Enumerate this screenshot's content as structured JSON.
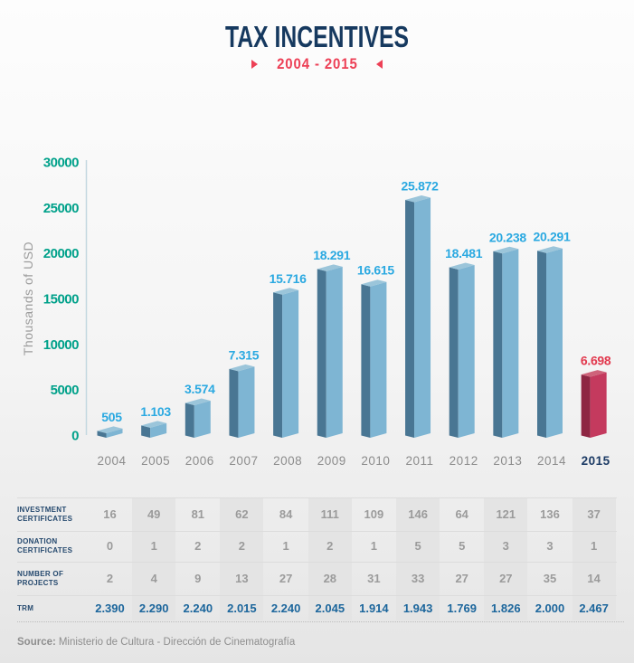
{
  "header": {
    "title": "TAX INCENTIVES",
    "subtitle": "2004 - 2015"
  },
  "chart_data": {
    "type": "bar",
    "title": "TAX INCENTIVES",
    "subtitle": "2004 - 2015",
    "ylabel": "Thousands of USD",
    "ylim": [
      0,
      30000
    ],
    "yticks": [
      0,
      5000,
      10000,
      15000,
      20000,
      25000,
      30000
    ],
    "grid": false,
    "legend": "none",
    "categories": [
      "2004",
      "2005",
      "2006",
      "2007",
      "2008",
      "2009",
      "2010",
      "2011",
      "2012",
      "2013",
      "2014",
      "2015"
    ],
    "values": [
      505,
      1103,
      3574,
      7315,
      15716,
      18291,
      16615,
      25872,
      18481,
      20238,
      20291,
      6698
    ],
    "value_labels": [
      "505",
      "1.103",
      "3.574",
      "7.315",
      "15.716",
      "18.291",
      "16.615",
      "25.872",
      "18.481",
      "20.238",
      "20.291",
      "6.698"
    ],
    "highlight_index": 11,
    "colors": {
      "title_navy": "#16395F",
      "accent_red": "#ED4056",
      "tick_teal": "#00A18A",
      "axis_line": "#C3D8E0",
      "ylabel_gray": "#9C9C9C",
      "bar_blue_front": "#7EB5D3",
      "bar_blue_side": "#497693",
      "bar_blue_top": "#9BC5DA",
      "bar_red_front": "#C43A5E",
      "bar_red_side": "#8E2643",
      "bar_red_top": "#CE637A",
      "value_label_blue": "#2BA9E1",
      "value_label_red": "#E2394E",
      "year_gray": "#8C8C8C",
      "year_highlight": "#1B3A64"
    }
  },
  "table": {
    "rows": [
      {
        "label_lines": [
          "INVESTMENT",
          "CERTIFICATES"
        ],
        "values": [
          "16",
          "49",
          "81",
          "62",
          "84",
          "111",
          "109",
          "146",
          "64",
          "121",
          "136",
          "37"
        ],
        "emphasis": false
      },
      {
        "label_lines": [
          "DONATION",
          "CERTIFICATES"
        ],
        "values": [
          "0",
          "1",
          "2",
          "2",
          "1",
          "2",
          "1",
          "5",
          "5",
          "3",
          "3",
          "1"
        ],
        "emphasis": false
      },
      {
        "label_lines": [
          "NUMBER OF",
          "PROJECTS"
        ],
        "values": [
          "2",
          "4",
          "9",
          "13",
          "27",
          "28",
          "31",
          "33",
          "27",
          "27",
          "35",
          "14"
        ],
        "emphasis": false
      },
      {
        "label_lines": [
          "TRM"
        ],
        "values": [
          "2.390",
          "2.290",
          "2.240",
          "2.015",
          "2.240",
          "2.045",
          "1.914",
          "1.943",
          "1.769",
          "1.826",
          "2.000",
          "2.467"
        ],
        "emphasis": true
      }
    ]
  },
  "source": {
    "prefix": "Source:",
    "text": "Ministerio de Cultura - Dirección de Cinematografía"
  }
}
